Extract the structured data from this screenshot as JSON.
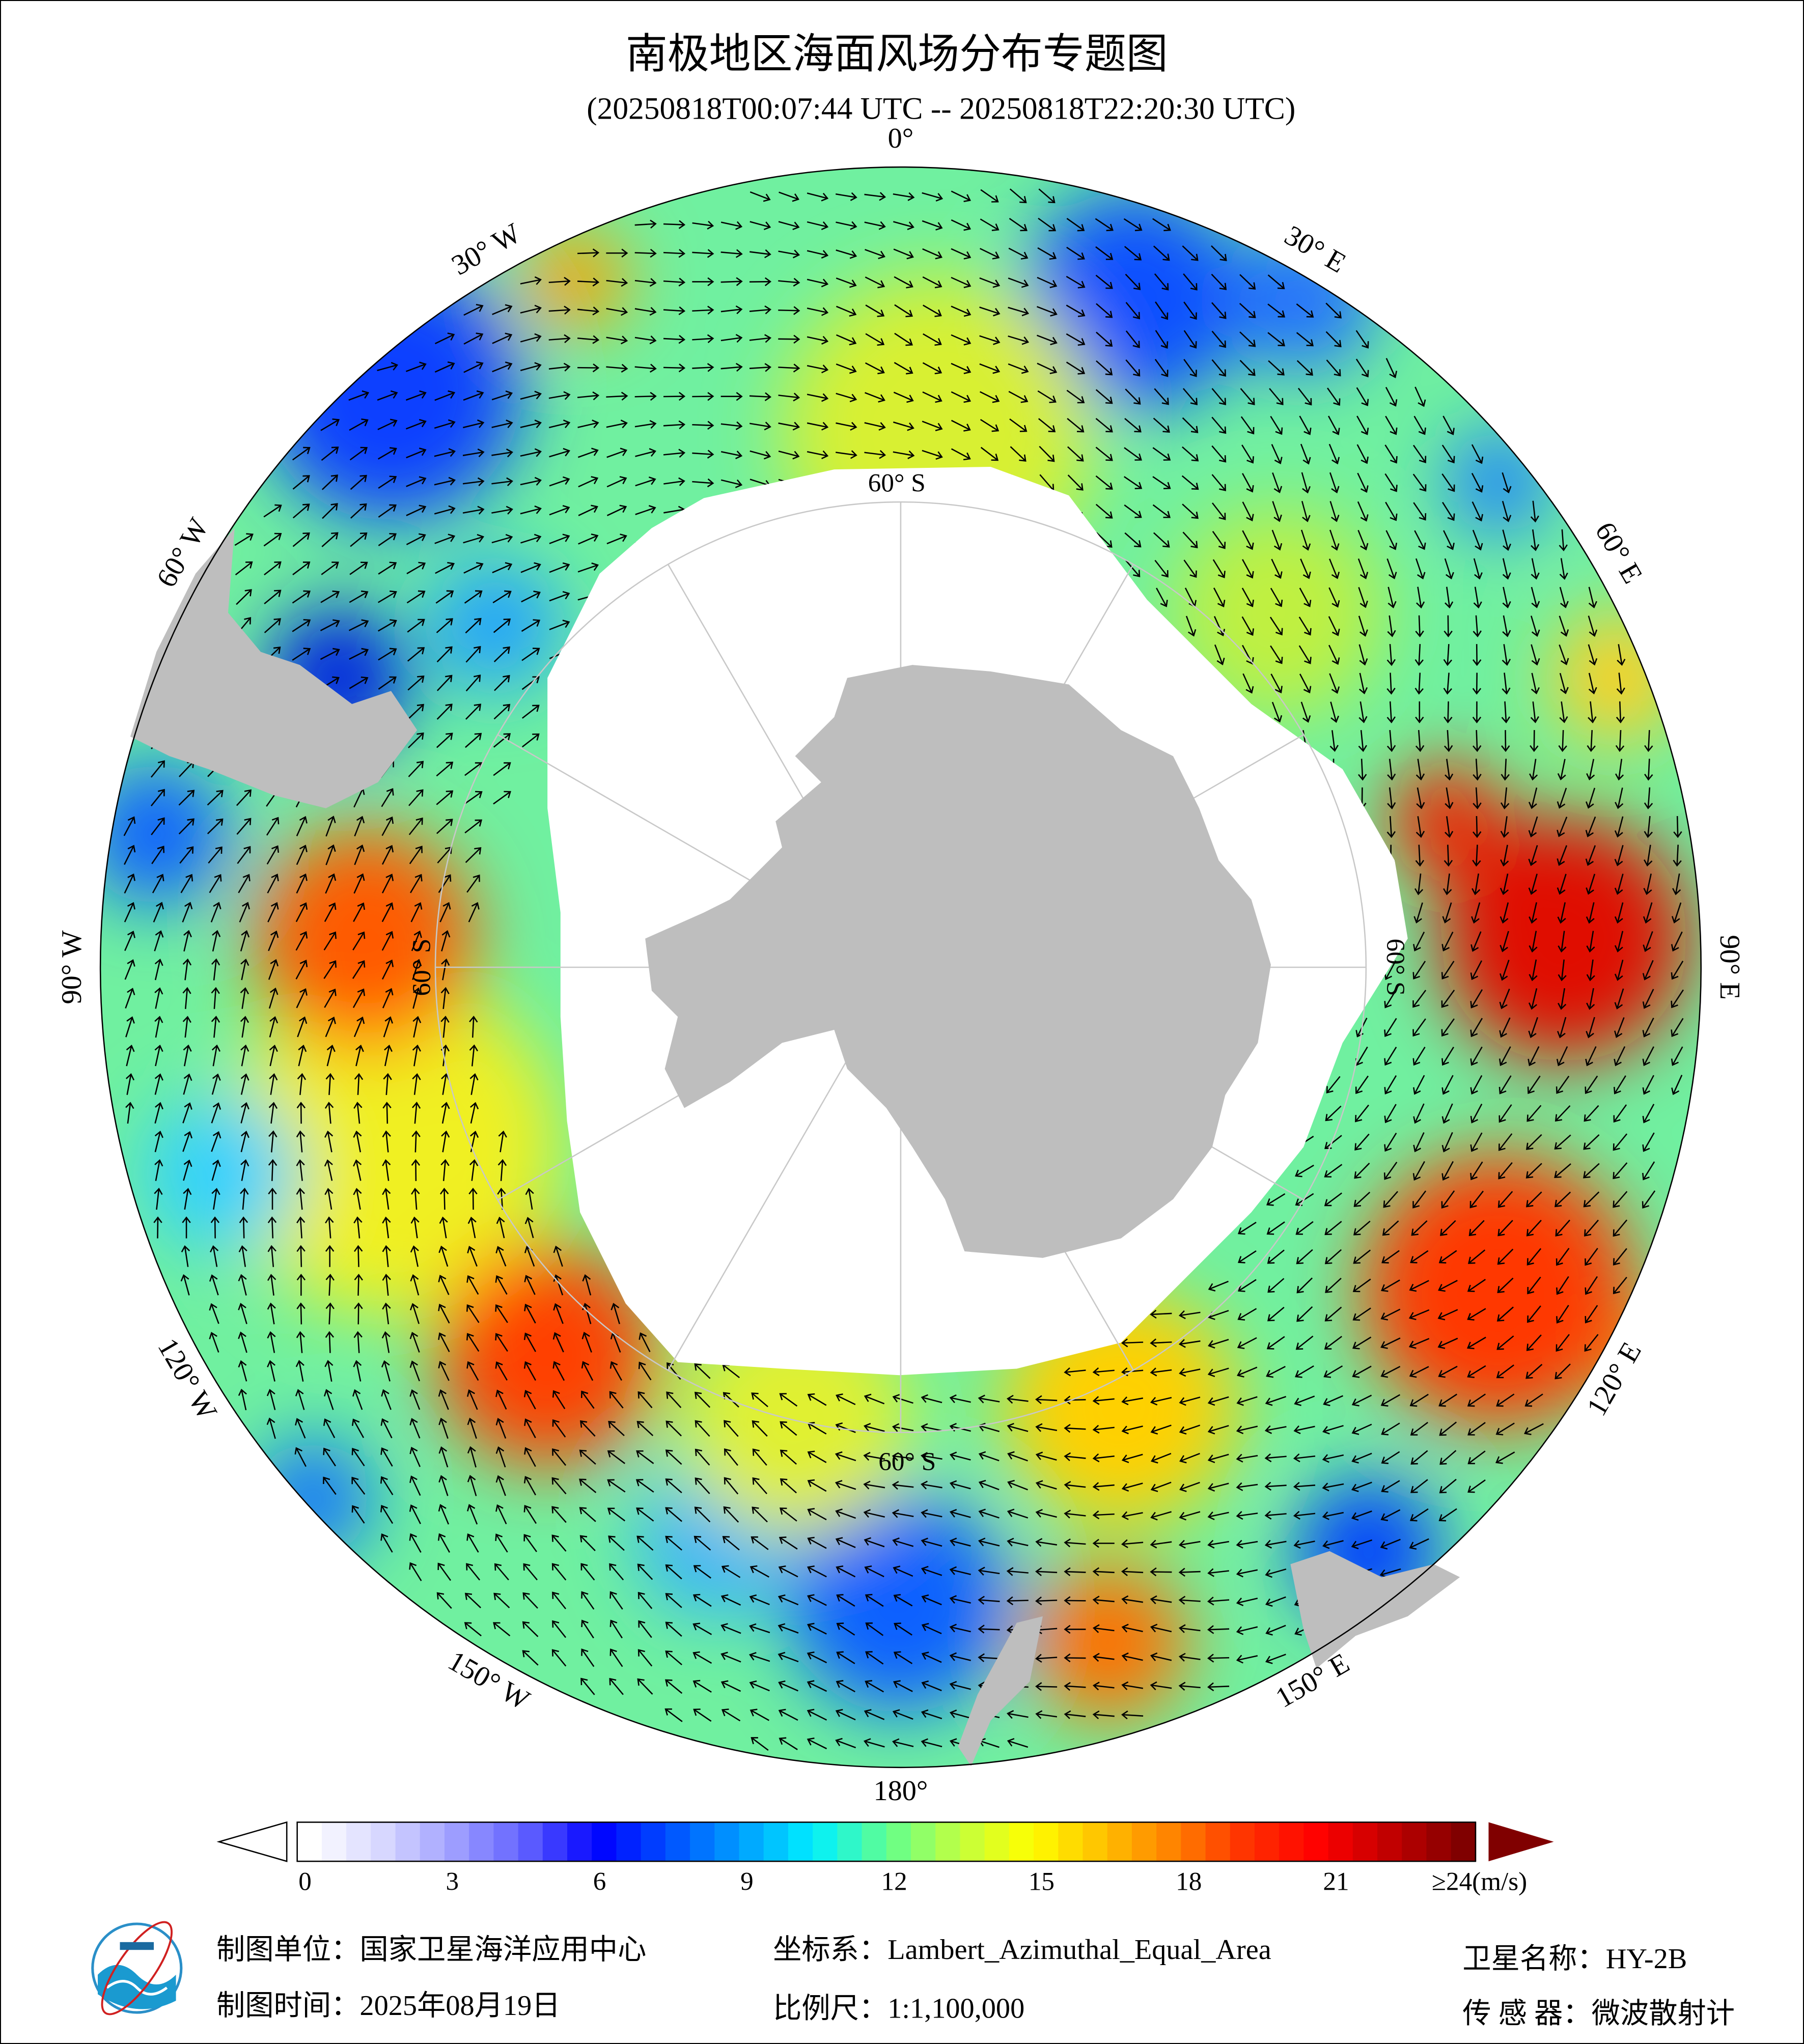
{
  "title": "南极地区海面风场分布专题图",
  "subtitle": "(20250818T00:07:44 UTC -- 20250818T22:20:30 UTC)",
  "map": {
    "projection_center": "South Pole",
    "longitude_labels": [
      "0°",
      "30° E",
      "60° E",
      "90° E",
      "120° E",
      "150° E",
      "180°",
      "150° W",
      "120° W",
      "90° W",
      "60° W",
      "30° W"
    ],
    "latitude_labels": [
      "60° S",
      "60° S",
      "60° S",
      "60° S"
    ],
    "colors": {
      "land": "#bebebe",
      "no_data": "#ffffff",
      "arrow": "#000000",
      "graticule": "#c8c8c8"
    }
  },
  "colorbar": {
    "unit": "(m/s)",
    "ticks": [
      "0",
      "3",
      "6",
      "9",
      "12",
      "15",
      "18",
      "21",
      "≥24(m/s)"
    ],
    "range": [
      0,
      24
    ],
    "colors": [
      "#ffffff",
      "#d8d8ff",
      "#a0a0ff",
      "#6060ff",
      "#0000ff",
      "#0050ff",
      "#00a0ff",
      "#00f0ff",
      "#60ff90",
      "#c0ff40",
      "#ffff00",
      "#ffc000",
      "#ff8000",
      "#ff3000",
      "#ff0000",
      "#c00000",
      "#800000"
    ],
    "over_color": "#800000"
  },
  "footer": {
    "unit": "制图单位：国家卫星海洋应用中心",
    "time": "制图时间：2025年08月19日",
    "crs": "坐标系：Lambert_Azimuthal_Equal_Area",
    "scale": "比例尺：1:1,100,000",
    "satellite": "卫星名称：HY-2B",
    "sensor": "传 感 器：微波散射计"
  }
}
